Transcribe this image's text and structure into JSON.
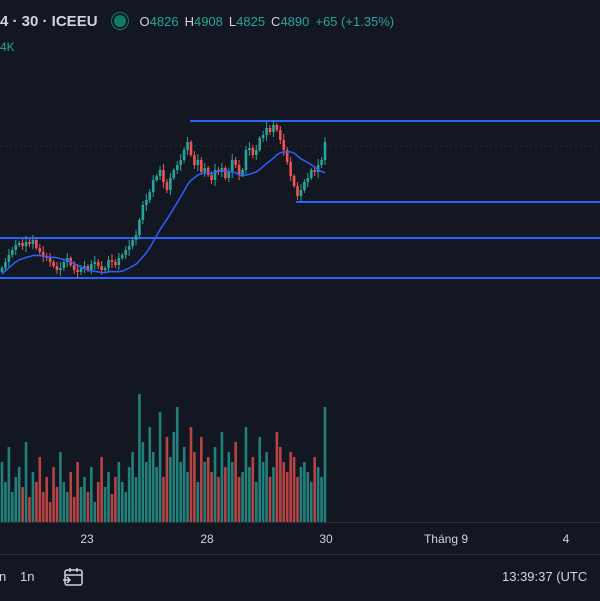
{
  "legend": {
    "symbol": "4 · 30 · ICEEU",
    "open_key": "O",
    "open_val": "4826",
    "high_key": "H",
    "high_val": "4908",
    "low_key": "L",
    "low_val": "4825",
    "close_key": "C",
    "close_val": "4890",
    "change": "+65 (+1.35%)",
    "status_icon": "market-open-dot-icon"
  },
  "volume_label": "4K",
  "time_axis": {
    "ticks": [
      "23",
      "28",
      "30",
      "Tháng 9",
      "4"
    ]
  },
  "toolbar": {
    "range_1": "n",
    "range_2": "1n",
    "goto_date_icon": "calendar-arrow-icon",
    "clock": "13:39:37 (UTC"
  },
  "colors": {
    "background": "#131722",
    "up": "#26a69a",
    "down": "#ef5350",
    "ma_line": "#2962ff",
    "horizontal_lines": "#2962ff"
  },
  "chart_data": {
    "type": "candlestick",
    "symbol": "ICEEU",
    "interval": "30",
    "ohlc_last": {
      "open": 4826,
      "high": 4908,
      "low": 4825,
      "close": 4890
    },
    "change_abs": 65,
    "change_pct": 1.35,
    "x_ticks": [
      "23",
      "28",
      "30",
      "Tháng 9",
      "4"
    ],
    "has_moving_average": true,
    "has_volume": true,
    "horizontal_levels_count": 4,
    "grid": false
  }
}
